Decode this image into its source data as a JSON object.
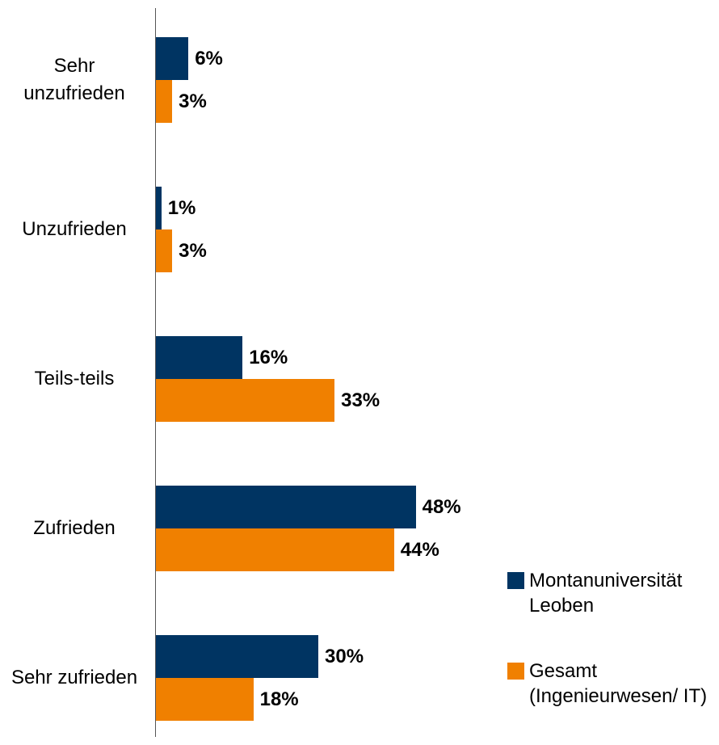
{
  "chart_data": {
    "type": "hbar",
    "categories": [
      "Sehr unzufrieden",
      "Unzufrieden",
      "Teils-teils",
      "Zufrieden",
      "Sehr zufrieden"
    ],
    "series": [
      {
        "name": "Montanuniversität Leoben",
        "color": "#003462",
        "values": [
          6,
          1,
          16,
          48,
          30
        ],
        "value_labels": [
          "6%",
          "1%",
          "16%",
          "48%",
          "30%"
        ]
      },
      {
        "name": "Gesamt (Ingenieurwesen/ IT)",
        "color": "#f08000",
        "values": [
          3,
          3,
          33,
          44,
          18
        ],
        "value_labels": [
          "3%",
          "3%",
          "33%",
          "44%",
          "18%"
        ]
      }
    ],
    "legend": "lower right"
  }
}
